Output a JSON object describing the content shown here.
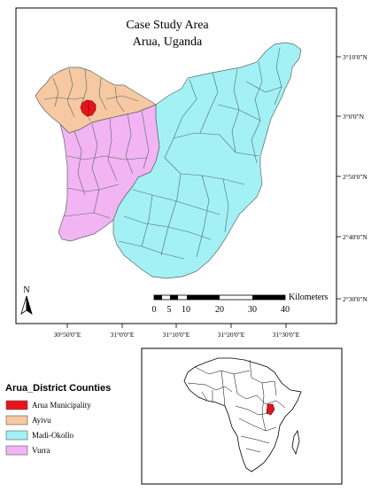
{
  "map": {
    "title_line1": "Case Study Area",
    "title_line2": "Arua, Uganda",
    "north_label": "N",
    "scale": {
      "unit_label": "Kilometers",
      "ticks": [
        "0",
        "5",
        "10",
        "20",
        "30",
        "40"
      ]
    },
    "lat_labels": [
      "3°10'0\"N",
      "3°0'0\"N",
      "2°50'0\"N",
      "2°40'0\"N",
      "2°30'0\"N"
    ],
    "lon_labels": [
      "30°50'0\"E",
      "31°0'0\"E",
      "31°10'0\"E",
      "31°20'0\"E",
      "31°30'0\"E"
    ]
  },
  "legend": {
    "title": "Arua_District Counties",
    "items": [
      {
        "label": "Arua Municipality",
        "color": "#e8141c"
      },
      {
        "label": "Ayivu",
        "color": "#f6c9a2"
      },
      {
        "label": "Madi-Okollo",
        "color": "#a3f1f5"
      },
      {
        "label": "Vurra",
        "color": "#f3b4f3"
      }
    ]
  },
  "inset": {
    "highlight_color": "#e8141c"
  }
}
